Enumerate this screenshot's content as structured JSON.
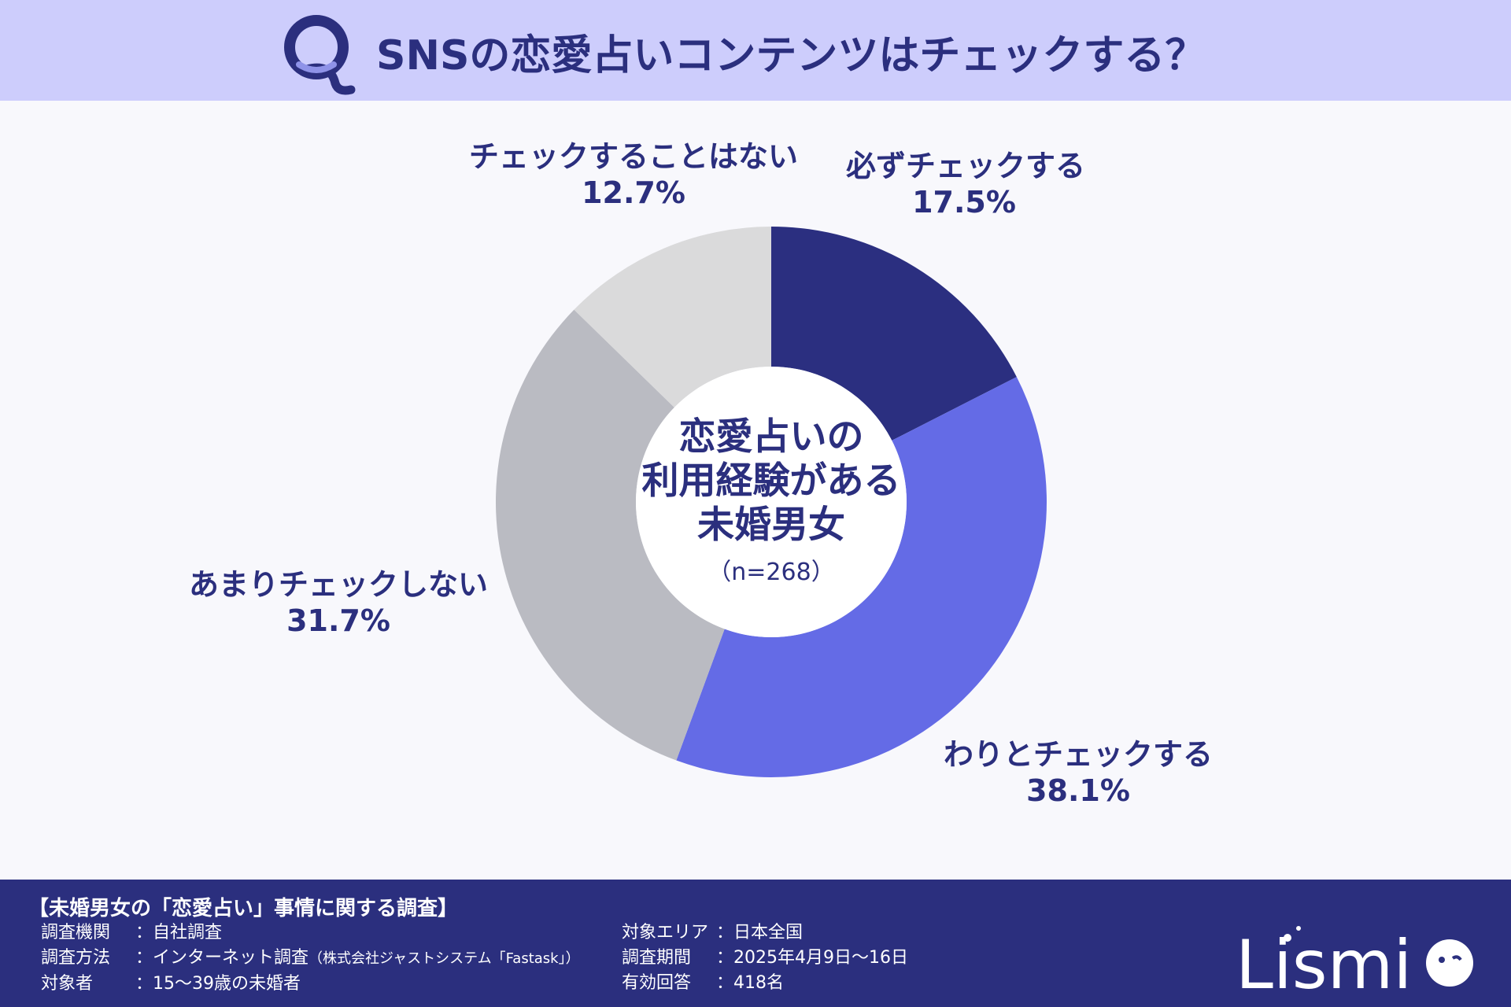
{
  "header": {
    "title": "SNSの恋愛占いコンテンツはチェックする？",
    "logo_letter": "Q"
  },
  "chart_data": {
    "type": "pie",
    "donut": true,
    "categories": [
      "必ずチェックする",
      "わりとチェックする",
      "あまりチェックしない",
      "チェックすることはない"
    ],
    "values": [
      17.5,
      38.1,
      31.7,
      12.7
    ],
    "value_labels": [
      "17.5%",
      "38.1%",
      "31.7%",
      "12.7%"
    ],
    "colors": [
      "#2b2f80",
      "#646be6",
      "#babbc2",
      "#dadadb"
    ],
    "center_lines": [
      "恋愛占いの",
      "利用経験がある",
      "未婚男女"
    ],
    "center_n": "（n=268）"
  },
  "footer": {
    "title": "【未婚男女の「恋愛占い」事情に関する調査】",
    "left": [
      {
        "key": "調査機関",
        "sep": "：",
        "value": "自社調査",
        "note": ""
      },
      {
        "key": "調査方法",
        "sep": "：",
        "value": "インターネット調査",
        "note": "（株式会社ジャストシステム「Fastask」）"
      },
      {
        "key": "対象者",
        "sep": "：",
        "value": "15～39歳の未婚者",
        "note": ""
      }
    ],
    "right": [
      {
        "key": "対象エリア",
        "sep": "：",
        "value": "日本全国"
      },
      {
        "key": "調査期間",
        "sep": "：",
        "value": "2025年4月9日～16日"
      },
      {
        "key": "有効回答",
        "sep": "：",
        "value": "418名"
      }
    ],
    "brand": "Lismi"
  }
}
